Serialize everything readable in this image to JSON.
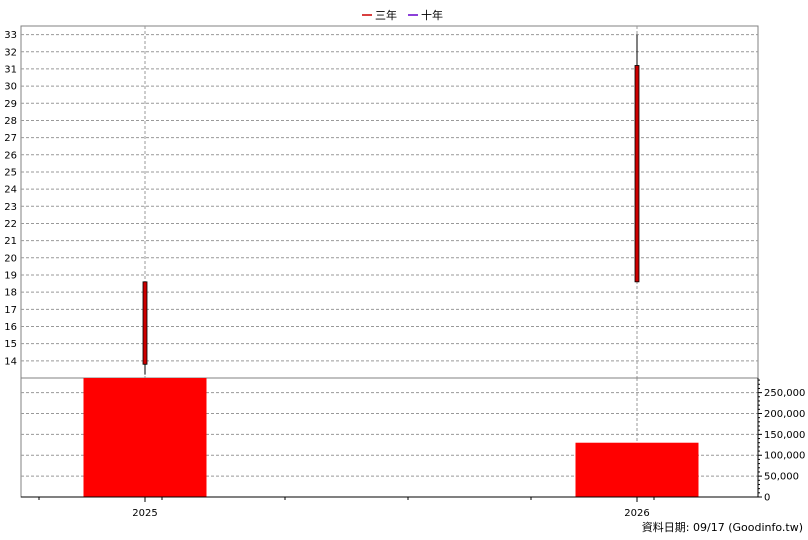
{
  "legend": {
    "items": [
      {
        "label": "三年",
        "color": "#cc0000"
      },
      {
        "label": "十年",
        "color": "#6600cc"
      }
    ]
  },
  "footer": {
    "text": "資料日期: 09/17  (Goodinfo.tw)"
  },
  "chart_data": [
    {
      "type": "candlestick",
      "categories": [
        "2025",
        "2026"
      ],
      "ylim": [
        13,
        33.5
      ],
      "yticks": [
        14,
        15,
        16,
        17,
        18,
        19,
        20,
        21,
        22,
        23,
        24,
        25,
        26,
        27,
        28,
        29,
        30,
        31,
        32,
        33
      ],
      "grid": true,
      "candles": [
        {
          "x": "2025",
          "open": 13.8,
          "close": 18.6,
          "low": 13.2,
          "high": 18.6,
          "color": "#cc0000"
        },
        {
          "x": "2026",
          "open": 18.6,
          "close": 31.2,
          "low": 18.6,
          "high": 33.0,
          "color": "#cc0000"
        }
      ]
    },
    {
      "type": "bar",
      "categories": [
        "2025",
        "2026"
      ],
      "values": [
        285000,
        130000
      ],
      "ylim": [
        0,
        285000
      ],
      "yticks": [
        0,
        50000,
        100000,
        150000,
        200000,
        250000
      ],
      "ytick_labels": [
        "0",
        "50,000",
        "100,000",
        "150,000",
        "200,000",
        "250,000"
      ],
      "grid": true,
      "color": "#ff0000"
    }
  ]
}
